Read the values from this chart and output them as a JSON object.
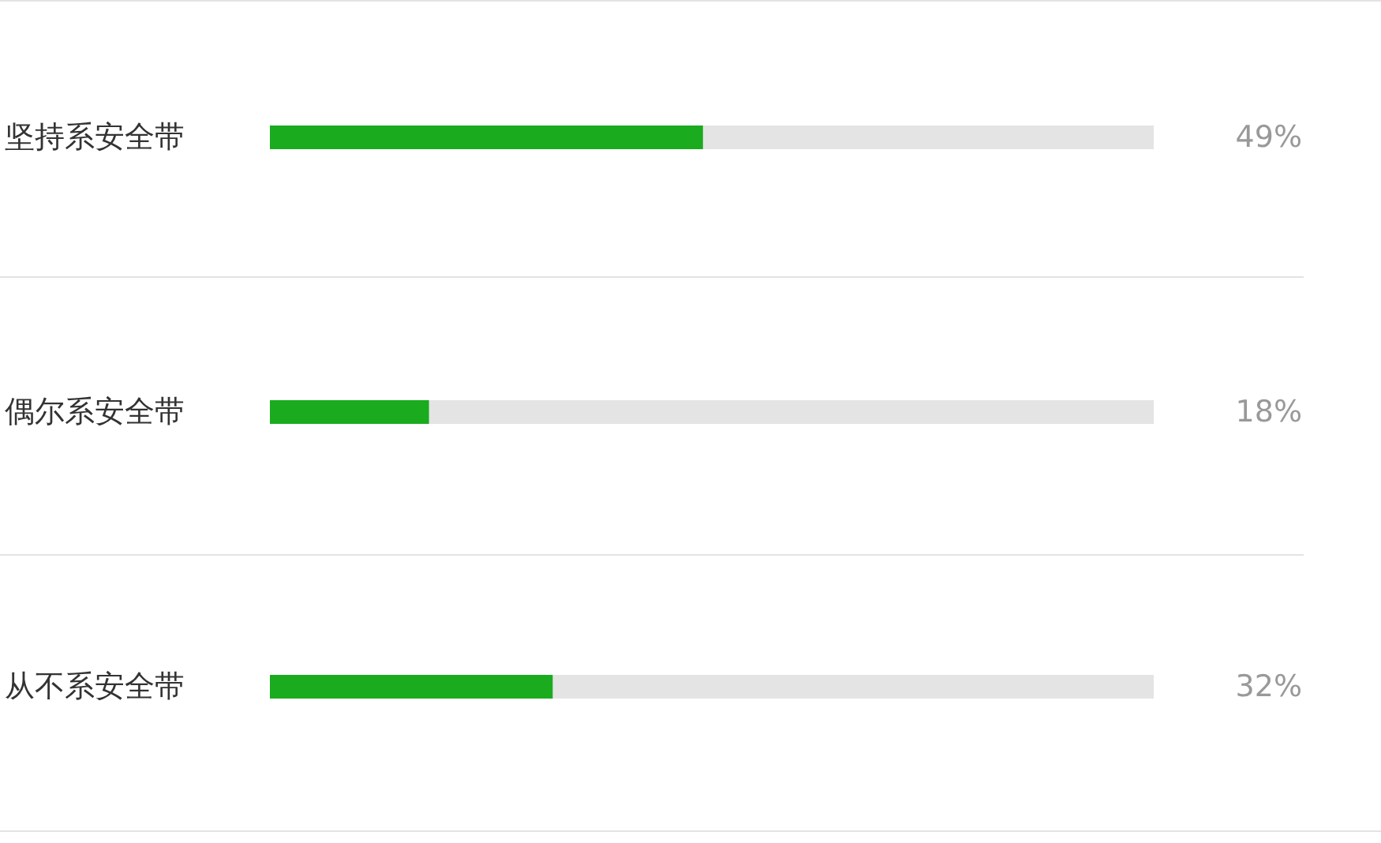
{
  "chart_data": {
    "type": "bar",
    "orientation": "horizontal",
    "categories": [
      "坚持系安全带",
      "偶尔系安全带",
      "从不系安全带"
    ],
    "values": [
      49,
      18,
      32
    ],
    "color": "#1aab1f",
    "value_labels": [
      "49%",
      "18%",
      "32%"
    ],
    "xlim": [
      0,
      100
    ],
    "tick_labels": "y",
    "grid": false
  }
}
